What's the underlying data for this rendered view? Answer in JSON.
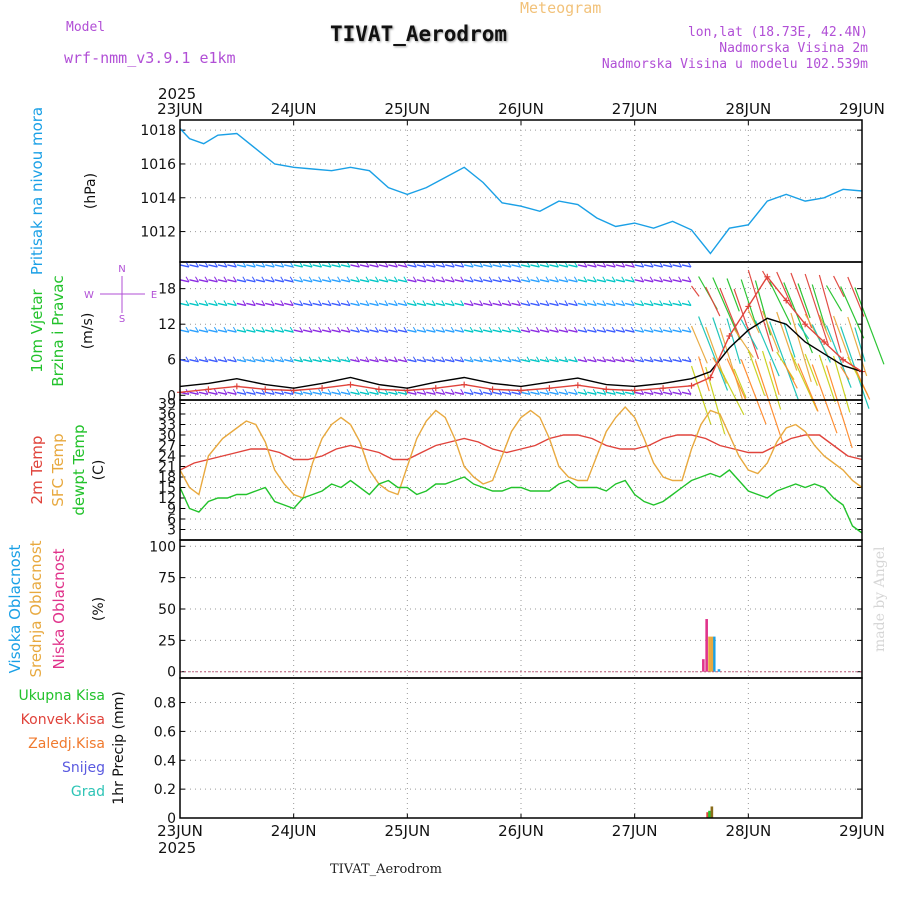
{
  "header": {
    "model_label": "Model",
    "model_name": "wrf-nmm_v3.9.1 e1km",
    "subtitle": "Meteogram",
    "title": "TIVAT_Aerodrom",
    "lonlat": "lon,lat (18.73E, 42.4N)",
    "elevation": "Nadmorska Visina 2m",
    "model_elevation": "Nadmorska Visina u modelu 102.539m"
  },
  "footer": {
    "title": "TIVAT_Aerodrom",
    "credit": "made by Angel"
  },
  "time_axis": {
    "year": "2025",
    "labels": [
      "23JUN",
      "24JUN",
      "25JUN",
      "26JUN",
      "27JUN",
      "28JUN",
      "29JUN"
    ]
  },
  "chart_data": [
    {
      "type": "line",
      "panel": "pressure",
      "ylabel": "Pritisak na nivou mora",
      "unit": "(hPa)",
      "ylim": [
        1010.2,
        1018.6
      ],
      "yticks": [
        1012,
        1014,
        1016,
        1018
      ],
      "ytick_labels": [
        "1012",
        "1014",
        "1016",
        "1018"
      ],
      "grid": true,
      "xlim": [
        0,
        144
      ],
      "series": [
        {
          "color": "#1aa0e6",
          "x": [
            0,
            2,
            5,
            8,
            12,
            16,
            20,
            24,
            28,
            32,
            36,
            40,
            44,
            48,
            52,
            56,
            60,
            64,
            68,
            72,
            76,
            80,
            84,
            88,
            92,
            96,
            100,
            104,
            108,
            112,
            116,
            120,
            124,
            128,
            132,
            136,
            140,
            144
          ],
          "y": [
            1018.1,
            1017.5,
            1017.2,
            1017.7,
            1017.8,
            1016.9,
            1016.0,
            1015.8,
            1015.7,
            1015.6,
            1015.8,
            1015.6,
            1014.6,
            1014.2,
            1014.6,
            1015.2,
            1015.8,
            1014.9,
            1013.7,
            1013.5,
            1013.2,
            1013.8,
            1013.6,
            1012.8,
            1012.3,
            1012.5,
            1012.2,
            1012.6,
            1012.1,
            1010.7,
            1012.2,
            1012.4,
            1013.8,
            1014.2,
            1013.8,
            1014.0,
            1014.5,
            1014.4
          ]
        }
      ]
    },
    {
      "type": "line",
      "panel": "wind",
      "ylabel": "10m Vjetar",
      "ylabel2": "Brzina i Pravac",
      "unit": "(m/s)",
      "compass": "N",
      "compass_w": "W",
      "compass_e": "E",
      "compass_s": "S",
      "ylim": [
        -0.8,
        22.5
      ],
      "yticks": [
        0,
        6,
        12,
        18
      ],
      "ytick_labels": [
        "0",
        "6",
        "12",
        "18"
      ],
      "barb_rows": [
        0.5,
        6,
        11,
        15.5,
        19.5,
        22
      ],
      "grid": true,
      "xlim": [
        0,
        144
      ],
      "series": [
        {
          "color": "#000000",
          "x": [
            0,
            6,
            12,
            18,
            24,
            30,
            36,
            42,
            48,
            54,
            60,
            66,
            72,
            78,
            84,
            90,
            96,
            102,
            108,
            112,
            116,
            120,
            124,
            128,
            132,
            136,
            140,
            144
          ],
          "y": [
            1.5,
            2.0,
            2.8,
            1.8,
            1.2,
            2.0,
            3.0,
            1.8,
            1.2,
            2.2,
            3.0,
            2.0,
            1.5,
            2.2,
            2.9,
            1.8,
            1.5,
            2.0,
            2.8,
            4.0,
            8.0,
            11.0,
            13.0,
            12.0,
            9.0,
            7.0,
            5.0,
            4.0
          ]
        },
        {
          "color": "#e0433b",
          "x": [
            0,
            6,
            12,
            18,
            24,
            30,
            36,
            42,
            48,
            54,
            60,
            66,
            72,
            78,
            84,
            90,
            96,
            102,
            108,
            112,
            116,
            120,
            124,
            128,
            132,
            136,
            140,
            144
          ],
          "y": [
            0.5,
            1.0,
            1.5,
            1.0,
            0.8,
            1.2,
            1.8,
            1.0,
            0.8,
            1.2,
            1.8,
            1.0,
            0.8,
            1.2,
            1.7,
            1.0,
            0.8,
            1.2,
            1.6,
            3.0,
            10.0,
            15.0,
            20.0,
            16.0,
            12.0,
            9.0,
            6.0,
            4.0
          ]
        }
      ]
    },
    {
      "type": "line",
      "panel": "temperature",
      "ylabel": "2m Temp",
      "ylabel2": "SFC Temp",
      "ylabel3": "dewpt Temp",
      "unit": "(C)",
      "ylim": [
        0,
        40
      ],
      "yticks": [
        3,
        6,
        9,
        12,
        15,
        18,
        21,
        24,
        27,
        30,
        33,
        36,
        39
      ],
      "ytick_labels": [
        "3",
        "6",
        "9",
        "12",
        "15",
        "18",
        "21",
        "24",
        "27",
        "30",
        "33",
        "36",
        "39"
      ],
      "grid": true,
      "xlim": [
        0,
        144
      ],
      "series": [
        {
          "color": "#e0433b",
          "x": [
            0,
            3,
            6,
            9,
            12,
            15,
            18,
            21,
            24,
            27,
            30,
            33,
            36,
            39,
            42,
            45,
            48,
            51,
            54,
            57,
            60,
            63,
            66,
            69,
            72,
            75,
            78,
            81,
            84,
            87,
            90,
            93,
            96,
            99,
            102,
            105,
            108,
            111,
            114,
            117,
            120,
            123,
            126,
            129,
            132,
            135,
            138,
            141,
            144
          ],
          "y": [
            20,
            22,
            23,
            24,
            25,
            26,
            26,
            25,
            23,
            23,
            24,
            26,
            27,
            26,
            25,
            23,
            23,
            25,
            27,
            28,
            29,
            28,
            26,
            25,
            26,
            27,
            29,
            30,
            30,
            29,
            27,
            26,
            26,
            27,
            29,
            30,
            30,
            29,
            27,
            26,
            25,
            25,
            27,
            29,
            30,
            30,
            27,
            24,
            23
          ]
        },
        {
          "color": "#e8a93f",
          "x": [
            0,
            2,
            4,
            6,
            9,
            12,
            14,
            16,
            18,
            20,
            22,
            24,
            26,
            28,
            30,
            32,
            34,
            36,
            38,
            40,
            42,
            44,
            46,
            48,
            50,
            52,
            54,
            56,
            58,
            60,
            62,
            64,
            66,
            68,
            70,
            72,
            74,
            76,
            78,
            80,
            82,
            84,
            86,
            88,
            90,
            92,
            94,
            96,
            98,
            100,
            102,
            104,
            106,
            108,
            110,
            112,
            114,
            116,
            118,
            120,
            122,
            124,
            126,
            128,
            130,
            132,
            134,
            136,
            138,
            140,
            142,
            144
          ],
          "y": [
            20,
            15,
            13,
            24,
            29,
            32,
            34,
            33,
            28,
            20,
            16,
            13,
            12,
            22,
            29,
            33,
            35,
            33,
            28,
            20,
            16,
            14,
            13,
            21,
            29,
            34,
            37,
            35,
            29,
            21,
            18,
            16,
            17,
            24,
            31,
            35,
            37,
            35,
            29,
            21,
            18,
            17,
            17,
            24,
            31,
            35,
            38,
            35,
            29,
            22,
            18,
            17,
            17,
            26,
            33,
            37,
            36,
            30,
            24,
            20,
            19,
            22,
            28,
            32,
            33,
            31,
            27,
            24,
            22,
            20,
            17,
            15
          ]
        },
        {
          "color": "#22c22b",
          "x": [
            0,
            2,
            4,
            6,
            8,
            10,
            12,
            14,
            16,
            18,
            20,
            22,
            24,
            26,
            28,
            30,
            32,
            34,
            36,
            38,
            40,
            42,
            44,
            46,
            48,
            50,
            52,
            54,
            56,
            58,
            60,
            62,
            64,
            66,
            68,
            70,
            72,
            74,
            76,
            78,
            80,
            82,
            84,
            86,
            88,
            90,
            92,
            94,
            96,
            98,
            100,
            102,
            104,
            106,
            108,
            110,
            112,
            114,
            116,
            118,
            120,
            122,
            124,
            126,
            128,
            130,
            132,
            134,
            136,
            138,
            140,
            142,
            144
          ],
          "y": [
            15,
            9,
            8,
            11,
            12,
            12,
            13,
            13,
            14,
            15,
            11,
            10,
            9,
            12,
            13,
            14,
            16,
            15,
            17,
            15,
            13,
            16,
            17,
            15,
            15,
            13,
            14,
            16,
            16,
            17,
            18,
            16,
            15,
            14,
            14,
            15,
            15,
            14,
            14,
            14,
            16,
            17,
            15,
            15,
            15,
            14,
            16,
            17,
            13,
            11,
            10,
            11,
            13,
            15,
            17,
            18,
            19,
            18,
            20,
            17,
            14,
            13,
            12,
            14,
            15,
            16,
            15,
            16,
            15,
            12,
            10,
            4,
            2
          ]
        }
      ]
    },
    {
      "type": "bar",
      "panel": "clouds",
      "ylabel": "Visoka Oblacnost",
      "ylabel2": "Srednja Oblacnost",
      "ylabel3": "Niska Oblacnost",
      "unit": "(%)",
      "ylim": [
        -5,
        105
      ],
      "yticks": [
        0,
        25,
        50,
        75,
        100
      ],
      "ytick_labels": [
        "0",
        "25",
        "50",
        "75",
        "100"
      ],
      "grid": true,
      "xlim": [
        0,
        144
      ],
      "series": [
        {
          "color": "#1aa0e6",
          "x": [
            112.8,
            113.8
          ],
          "y": [
            28,
            2
          ]
        },
        {
          "color": "#e8a93f",
          "x": [
            111.8,
            112.3
          ],
          "y": [
            28,
            28
          ]
        },
        {
          "color": "#e0338b",
          "x": [
            110.5,
            111.2
          ],
          "y": [
            10,
            42
          ]
        }
      ]
    },
    {
      "type": "bar",
      "panel": "precipitation",
      "ylabel": "1hr Precip",
      "unit": "(mm)",
      "legend": [
        "Ukupna Kisa",
        "Konvek.Kisa",
        "Zaledj.Kisa",
        "Snijeg",
        "Grad"
      ],
      "legend_colors": [
        "#22c22b",
        "#e0433b",
        "#f07a2e",
        "#5a5ae0",
        "#2ec4b6"
      ],
      "ylim": [
        0,
        0.97
      ],
      "yticks": [
        0,
        0.2,
        0.4,
        0.6,
        0.8
      ],
      "ytick_labels": [
        "0",
        "0.2",
        "0.4",
        "0.6",
        "0.8"
      ],
      "grid": true,
      "xlim": [
        0,
        144
      ],
      "series": [
        {
          "color": "#e0433b",
          "x": [
            111.4
          ],
          "y": [
            0.04
          ]
        },
        {
          "color": "#22c22b",
          "x": [
            111.8
          ],
          "y": [
            0.05
          ]
        },
        {
          "color": "#8a6d1a",
          "x": [
            112.3
          ],
          "y": [
            0.08
          ]
        }
      ]
    }
  ]
}
